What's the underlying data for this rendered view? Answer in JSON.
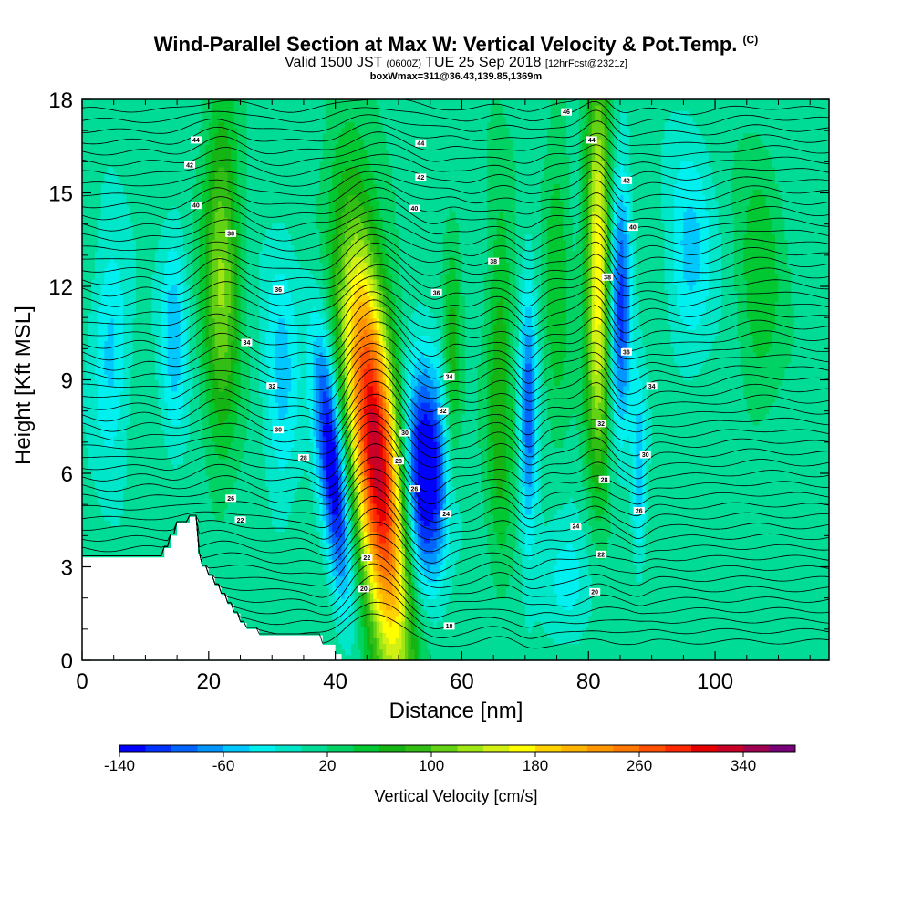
{
  "title": "Wind-Parallel Section at Max W: Vertical Velocity & Pot.Temp.",
  "copyright_mark": "(C)",
  "subtitle_main": "Valid 1500 JST",
  "subtitle_utc": "(0600Z)",
  "subtitle_date": "TUE 25 Sep 2018",
  "subtitle_fcst": "[12hrFcst@2321z]",
  "box_info": "boxWmax=311@36.43,139.85,1369m",
  "chart_data": {
    "type": "heatmap",
    "title": "Wind-Parallel Section at Max W: Vertical Velocity & Pot.Temp.",
    "xlabel": "Distance [nm]",
    "ylabel": "Height [Kft MSL]",
    "xlim": [
      0,
      118
    ],
    "ylim": [
      0,
      18
    ],
    "x_ticks": [
      0,
      20,
      40,
      60,
      80,
      100
    ],
    "x_tick_labels": [
      "0",
      "20",
      "40",
      "60",
      "80",
      "100"
    ],
    "y_ticks": [
      0,
      3,
      6,
      9,
      12,
      15,
      18
    ],
    "y_tick_labels": [
      "0",
      "3",
      "6",
      "9",
      "12",
      "15",
      "18"
    ],
    "colorbar": {
      "label": "Vertical Velocity [cm/s]",
      "min": -140,
      "max": 380,
      "step": 20,
      "tick_values": [
        -140,
        -60,
        20,
        100,
        180,
        260,
        340
      ],
      "tick_labels": [
        "-140",
        "-60",
        "20",
        "100",
        "180",
        "260",
        "340"
      ],
      "colors": [
        "#0000ff",
        "#0032ff",
        "#0064ff",
        "#0096ff",
        "#00c8ff",
        "#00f0f0",
        "#00e6c8",
        "#00dc96",
        "#00d264",
        "#00c832",
        "#14b414",
        "#32be14",
        "#64d214",
        "#a0e614",
        "#d2f014",
        "#ffff00",
        "#ffd200",
        "#ffb400",
        "#ff9600",
        "#ff7800",
        "#ff5000",
        "#ff2800",
        "#e60000",
        "#c80028",
        "#a00050",
        "#780078"
      ]
    },
    "terrain_profile": {
      "x": [
        0,
        13,
        13,
        14,
        14,
        15,
        15,
        17,
        17,
        18.3,
        18.3,
        19,
        19,
        20,
        20,
        21,
        21,
        22,
        22,
        23,
        23,
        24,
        24,
        25,
        25,
        26,
        26,
        28,
        28,
        38,
        38,
        40,
        40,
        41
      ],
      "y": [
        3.3,
        3.3,
        3.6,
        3.6,
        4.0,
        4.0,
        4.4,
        4.4,
        4.6,
        4.6,
        3.4,
        3.4,
        3.0,
        3.0,
        2.7,
        2.7,
        2.4,
        2.4,
        2.1,
        2.1,
        1.8,
        1.8,
        1.5,
        1.5,
        1.2,
        1.2,
        1.0,
        1.0,
        0.8,
        0.8,
        0.5,
        0.5,
        0.2,
        0.2
      ]
    },
    "velocity_features": [
      {
        "x": 46.5,
        "z": 6.5,
        "amplitude": 320,
        "sigma_x": 2.8,
        "sigma_z": 5.0,
        "tilt": -0.45
      },
      {
        "x": 39.5,
        "z": 6.3,
        "amplitude": -160,
        "sigma_x": 1.5,
        "sigma_z": 3.0,
        "tilt": -0.45
      },
      {
        "x": 54.0,
        "z": 5.8,
        "amplitude": -180,
        "sigma_x": 2.5,
        "sigma_z": 2.5,
        "tilt": 0.0
      },
      {
        "x": 81.5,
        "z": 12.5,
        "amplitude": 170,
        "sigma_x": 1.4,
        "sigma_z": 4.5,
        "tilt": 0.0
      },
      {
        "x": 85.0,
        "z": 11.5,
        "amplitude": -120,
        "sigma_x": 1.2,
        "sigma_z": 3.0,
        "tilt": 0.0
      },
      {
        "x": 22.0,
        "z": 12.5,
        "amplitude": 110,
        "sigma_x": 2.0,
        "sigma_z": 4.0,
        "tilt": 0.0
      },
      {
        "x": 70.5,
        "z": 8.0,
        "amplitude": -100,
        "sigma_x": 1.0,
        "sigma_z": 3.0,
        "tilt": 0.0
      },
      {
        "x": 66.0,
        "z": 9.0,
        "amplitude": 70,
        "sigma_x": 1.5,
        "sigma_z": 4.0,
        "tilt": 0.0
      },
      {
        "x": 4.5,
        "z": 10.0,
        "amplitude": -60,
        "sigma_x": 2.0,
        "sigma_z": 2.5,
        "tilt": 0.0
      },
      {
        "x": 14.5,
        "z": 10.5,
        "amplitude": -60,
        "sigma_x": 1.5,
        "sigma_z": 2.5,
        "tilt": 0.0
      },
      {
        "x": 31.5,
        "z": 9.0,
        "amplitude": -55,
        "sigma_x": 2.0,
        "sigma_z": 3.0,
        "tilt": 0.0
      },
      {
        "x": 58.5,
        "z": 9.5,
        "amplitude": 60,
        "sigma_x": 1.0,
        "sigma_z": 3.0,
        "tilt": 0.0
      },
      {
        "x": 88.0,
        "z": 6.0,
        "amplitude": -70,
        "sigma_x": 0.8,
        "sigma_z": 2.0,
        "tilt": 0.0
      },
      {
        "x": 96.0,
        "z": 13.0,
        "amplitude": -55,
        "sigma_x": 2.5,
        "sigma_z": 2.5,
        "tilt": 0.0
      },
      {
        "x": 107.0,
        "z": 12.0,
        "amplitude": 45,
        "sigma_x": 2.5,
        "sigma_z": 3.0,
        "tilt": 0.0
      },
      {
        "x": 75.0,
        "z": 12.5,
        "amplitude": 45,
        "sigma_x": 1.5,
        "sigma_z": 4.0,
        "tilt": 0.0
      },
      {
        "x": 76.0,
        "z": 2.5,
        "amplitude": -40,
        "sigma_x": 3.0,
        "sigma_z": 1.5,
        "tilt": 0.0
      }
    ],
    "background_velocity": 10,
    "pot_temp_contour_labels": [
      {
        "text": "44",
        "x": 18.0,
        "z": 16.7
      },
      {
        "text": "42",
        "x": 17.0,
        "z": 15.9
      },
      {
        "text": "40",
        "x": 18.0,
        "z": 14.6
      },
      {
        "text": "38",
        "x": 23.5,
        "z": 13.7
      },
      {
        "text": "36",
        "x": 31.0,
        "z": 11.9
      },
      {
        "text": "34",
        "x": 26.0,
        "z": 10.2
      },
      {
        "text": "32",
        "x": 30.0,
        "z": 8.8
      },
      {
        "text": "30",
        "x": 31.0,
        "z": 7.4
      },
      {
        "text": "28",
        "x": 35.0,
        "z": 6.5
      },
      {
        "text": "26",
        "x": 23.5,
        "z": 5.2
      },
      {
        "text": "22",
        "x": 25.0,
        "z": 4.5
      },
      {
        "text": "44",
        "x": 53.5,
        "z": 16.6
      },
      {
        "text": "42",
        "x": 53.5,
        "z": 15.5
      },
      {
        "text": "40",
        "x": 52.5,
        "z": 14.5
      },
      {
        "text": "38",
        "x": 65.0,
        "z": 12.8
      },
      {
        "text": "36",
        "x": 56.0,
        "z": 11.8
      },
      {
        "text": "34",
        "x": 58.0,
        "z": 9.1
      },
      {
        "text": "32",
        "x": 57.0,
        "z": 8.0
      },
      {
        "text": "30",
        "x": 51.0,
        "z": 7.3
      },
      {
        "text": "28",
        "x": 50.0,
        "z": 6.4
      },
      {
        "text": "26",
        "x": 52.5,
        "z": 5.5
      },
      {
        "text": "24",
        "x": 57.5,
        "z": 4.7
      },
      {
        "text": "22",
        "x": 45.0,
        "z": 3.3
      },
      {
        "text": "20",
        "x": 44.5,
        "z": 2.3
      },
      {
        "text": "18",
        "x": 58.0,
        "z": 1.1
      },
      {
        "text": "46",
        "x": 76.5,
        "z": 17.6
      },
      {
        "text": "44",
        "x": 80.5,
        "z": 16.7
      },
      {
        "text": "42",
        "x": 86.0,
        "z": 15.4
      },
      {
        "text": "40",
        "x": 87.0,
        "z": 13.9
      },
      {
        "text": "38",
        "x": 83.0,
        "z": 12.3
      },
      {
        "text": "36",
        "x": 86.0,
        "z": 9.9
      },
      {
        "text": "34",
        "x": 90.0,
        "z": 8.8
      },
      {
        "text": "32",
        "x": 82.0,
        "z": 7.6
      },
      {
        "text": "30",
        "x": 89.0,
        "z": 6.6
      },
      {
        "text": "28",
        "x": 82.5,
        "z": 5.8
      },
      {
        "text": "26",
        "x": 88.0,
        "z": 4.8
      },
      {
        "text": "24",
        "x": 78.0,
        "z": 4.3
      },
      {
        "text": "22",
        "x": 82.0,
        "z": 3.4
      },
      {
        "text": "20",
        "x": 81.0,
        "z": 2.2
      }
    ]
  }
}
